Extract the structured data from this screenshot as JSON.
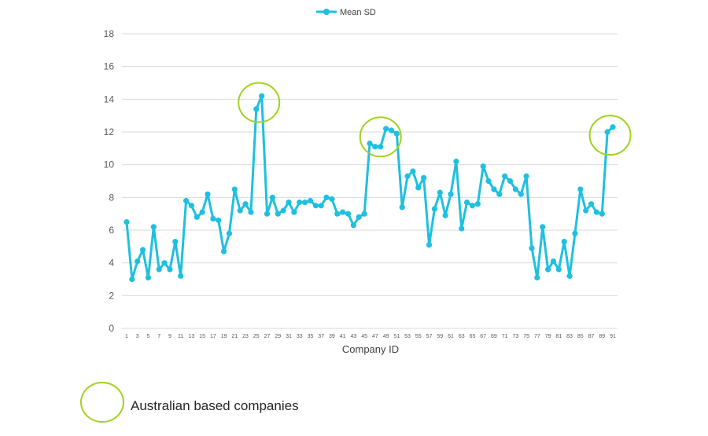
{
  "chart_data": {
    "type": "line",
    "xlabel": "Company ID",
    "ylabel": "",
    "ylim": [
      0,
      18
    ],
    "yticks": [
      0,
      2,
      4,
      6,
      8,
      10,
      12,
      14,
      16,
      18
    ],
    "grid": true,
    "legend_position": "top-center",
    "series": [
      {
        "name": "Mean SD",
        "color": "#1ec0e0",
        "values": [
          6.5,
          3.0,
          4.1,
          4.8,
          3.1,
          6.2,
          3.6,
          4.0,
          3.6,
          5.3,
          3.2,
          7.8,
          7.5,
          6.8,
          7.1,
          8.2,
          6.7,
          6.6,
          4.7,
          5.8,
          8.5,
          7.2,
          7.6,
          7.1,
          13.4,
          14.2,
          7.0,
          8.0,
          7.0,
          7.2,
          7.7,
          7.1,
          7.7,
          7.7,
          7.8,
          7.5,
          7.5,
          8.0,
          7.9,
          7.0,
          7.1,
          7.0,
          6.3,
          6.8,
          7.0,
          11.3,
          11.1,
          11.1,
          12.2,
          12.1,
          11.9,
          7.4,
          9.3,
          9.6,
          8.6,
          9.2,
          5.1,
          7.3,
          8.3,
          6.9,
          8.2,
          10.2,
          6.1,
          7.7,
          7.5,
          7.6,
          9.9,
          9.0,
          8.5,
          8.2,
          9.3,
          9.0,
          8.5,
          8.2,
          9.3,
          4.9,
          3.1,
          6.2,
          3.6,
          4.1,
          3.6,
          5.3,
          3.2,
          5.8,
          8.5,
          7.2,
          7.6,
          7.1,
          7.0,
          12.0,
          12.3
        ]
      }
    ],
    "x": [
      1,
      2,
      3,
      4,
      5,
      6,
      7,
      8,
      9,
      10,
      11,
      12,
      13,
      14,
      15,
      16,
      17,
      18,
      19,
      20,
      21,
      22,
      23,
      24,
      25,
      26,
      27,
      28,
      29,
      30,
      31,
      32,
      33,
      34,
      35,
      36,
      37,
      38,
      39,
      40,
      41,
      42,
      43,
      44,
      45,
      46,
      47,
      48,
      49,
      50,
      51,
      52,
      53,
      54,
      55,
      56,
      57,
      58,
      59,
      60,
      61,
      62,
      63,
      64,
      65,
      66,
      67,
      68,
      69,
      70,
      71,
      72,
      73,
      74,
      75,
      76,
      77,
      78,
      79,
      80,
      81,
      82,
      83,
      84,
      85,
      86,
      87,
      88,
      89,
      90,
      91
    ],
    "xtick_labels": [
      1,
      3,
      5,
      7,
      9,
      11,
      13,
      15,
      17,
      19,
      21,
      23,
      25,
      27,
      29,
      31,
      33,
      35,
      37,
      39,
      41,
      43,
      45,
      47,
      49,
      51,
      53,
      55,
      57,
      59,
      61,
      63,
      65,
      67,
      69,
      71,
      73,
      75,
      77,
      79,
      81,
      83,
      85,
      87,
      89,
      91
    ],
    "highlight_circles": [
      {
        "x": 25.5,
        "y": 13.8
      },
      {
        "x": 48,
        "y": 11.7
      },
      {
        "x": 90.5,
        "y": 11.8
      }
    ],
    "highlight_color": "#9fd21e",
    "gridline_color": "#d9d9d9",
    "annotation": {
      "label": "Australian based companies"
    }
  }
}
